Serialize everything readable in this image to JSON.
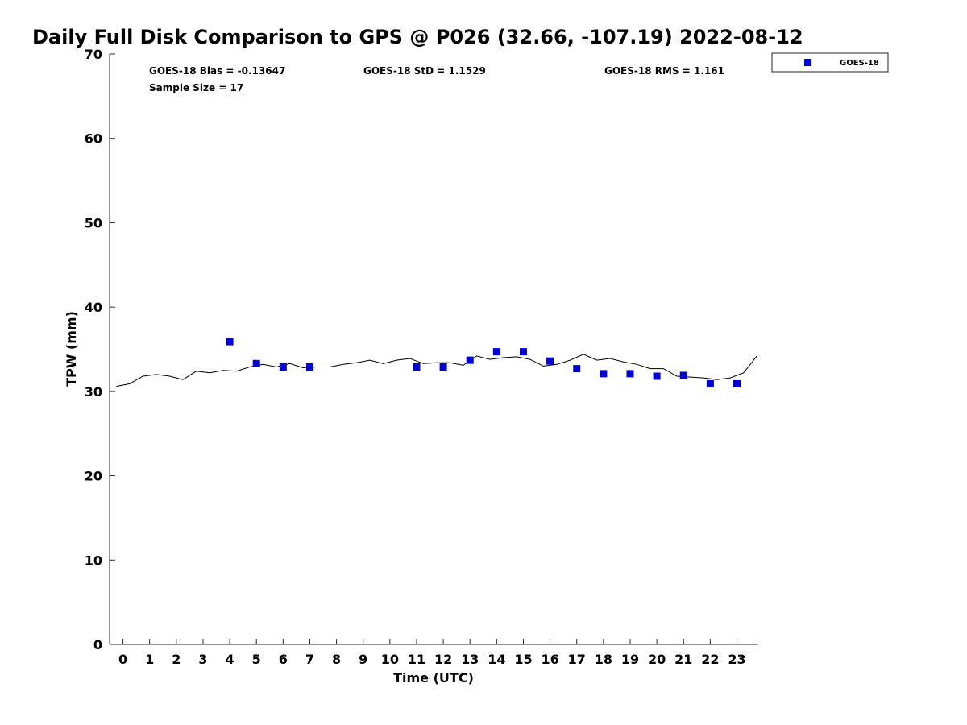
{
  "chart_data": {
    "type": "scatter",
    "title": "Daily Full Disk Comparison to GPS @ P026 (32.66, -107.19) 2022-08-12",
    "xlabel": "Time (UTC)",
    "ylabel": "TPW (mm)",
    "xlim": [
      -0.5,
      23.8
    ],
    "ylim": [
      0,
      70
    ],
    "xticks": [
      0,
      1,
      2,
      3,
      4,
      5,
      6,
      7,
      8,
      9,
      10,
      11,
      12,
      13,
      14,
      15,
      16,
      17,
      18,
      19,
      20,
      21,
      22,
      23
    ],
    "yticks": [
      0,
      10,
      20,
      30,
      40,
      50,
      60,
      70
    ],
    "grid": false,
    "legend": {
      "position": "top-right",
      "entries": [
        "GOES-18"
      ]
    },
    "colors": {
      "goes18": "#0000dd",
      "gps_line": "#000000"
    },
    "stats": {
      "bias": "GOES-18 Bias = -0.13647",
      "std": "GOES-18 StD = 1.1529",
      "rms": "GOES-18 RMS = 1.161",
      "sample_size": "Sample Size = 17"
    },
    "series": [
      {
        "name": "GOES-18",
        "style": "square-markers",
        "x": [
          4,
          5,
          6,
          7,
          11,
          12,
          13,
          14,
          15,
          16,
          17,
          18,
          19,
          20,
          21,
          22,
          23
        ],
        "y": [
          35.9,
          33.3,
          32.9,
          32.9,
          32.9,
          32.9,
          33.7,
          34.7,
          34.7,
          33.6,
          32.7,
          32.1,
          32.1,
          31.8,
          31.9,
          30.9,
          30.9
        ]
      },
      {
        "style": "line",
        "x": [
          -0.25,
          0.25,
          0.75,
          1.25,
          1.75,
          2.25,
          2.75,
          3.25,
          3.75,
          4.25,
          4.75,
          5.25,
          5.75,
          6.25,
          6.75,
          7.25,
          7.75,
          8.25,
          8.75,
          9.25,
          9.75,
          10.25,
          10.75,
          11.25,
          11.75,
          12.25,
          12.75,
          13.25,
          13.75,
          14.25,
          14.75,
          15.25,
          15.75,
          16.25,
          16.75,
          17.25,
          17.75,
          18.25,
          18.75,
          19.25,
          19.75,
          20.25,
          20.75,
          21.25,
          21.75,
          22.25,
          22.75,
          23.25,
          23.75
        ],
        "y": [
          30.6,
          30.9,
          31.8,
          32.0,
          31.8,
          31.4,
          32.4,
          32.2,
          32.5,
          32.4,
          32.9,
          33.2,
          32.9,
          33.3,
          32.8,
          32.9,
          32.9,
          33.2,
          33.4,
          33.7,
          33.3,
          33.7,
          33.9,
          33.3,
          33.4,
          33.4,
          33.1,
          34.2,
          33.8,
          34.0,
          34.1,
          33.8,
          33.0,
          33.2,
          33.7,
          34.4,
          33.7,
          33.9,
          33.5,
          33.2,
          32.7,
          32.7,
          31.8,
          31.7,
          31.6,
          31.4,
          31.6,
          32.2,
          34.2
        ]
      }
    ]
  }
}
